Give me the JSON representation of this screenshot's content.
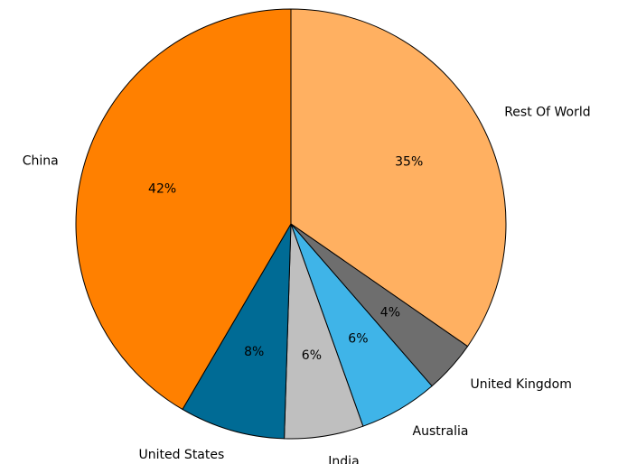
{
  "chart_data": {
    "type": "pie",
    "categories": [
      "Rest Of World",
      "United Kingdom",
      "Australia",
      "India",
      "United States",
      "China"
    ],
    "values": [
      35,
      4,
      6,
      6,
      8,
      42
    ],
    "value_labels": [
      "35%",
      "4%",
      "6%",
      "6%",
      "8%",
      "42%"
    ],
    "colors": [
      "#ffb061",
      "#6e6e6e",
      "#3fb4e8",
      "#bfbfbf",
      "#006b95",
      "#ff8000"
    ],
    "start": "12 o'clock",
    "direction": "clockwise",
    "title": ""
  }
}
